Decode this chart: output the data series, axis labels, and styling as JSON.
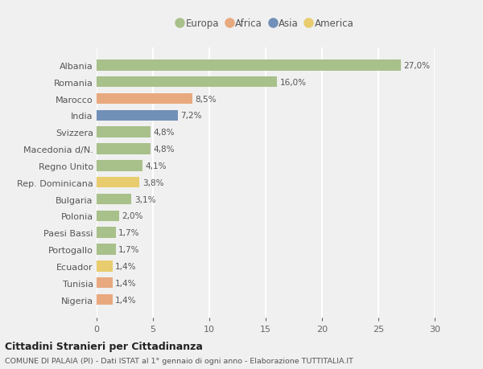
{
  "categories": [
    "Albania",
    "Romania",
    "Marocco",
    "India",
    "Svizzera",
    "Macedonia d/N.",
    "Regno Unito",
    "Rep. Dominicana",
    "Bulgaria",
    "Polonia",
    "Paesi Bassi",
    "Portogallo",
    "Ecuador",
    "Tunisia",
    "Nigeria"
  ],
  "values": [
    27.0,
    16.0,
    8.5,
    7.2,
    4.8,
    4.8,
    4.1,
    3.8,
    3.1,
    2.0,
    1.7,
    1.7,
    1.4,
    1.4,
    1.4
  ],
  "labels": [
    "27,0%",
    "16,0%",
    "8,5%",
    "7,2%",
    "4,8%",
    "4,8%",
    "4,1%",
    "3,8%",
    "3,1%",
    "2,0%",
    "1,7%",
    "1,7%",
    "1,4%",
    "1,4%",
    "1,4%"
  ],
  "colors": [
    "#a8c08a",
    "#a8c08a",
    "#e8a97e",
    "#7190b8",
    "#a8c08a",
    "#a8c08a",
    "#a8c08a",
    "#e8cc6e",
    "#a8c08a",
    "#a8c08a",
    "#a8c08a",
    "#a8c08a",
    "#e8cc6e",
    "#e8a97e",
    "#e8a97e"
  ],
  "continents": [
    "Europa",
    "Africa",
    "Asia",
    "America"
  ],
  "legend_colors": [
    "#a8c08a",
    "#e8a97e",
    "#7190b8",
    "#e8cc6e"
  ],
  "xlim": [
    0,
    30
  ],
  "xticks": [
    0,
    5,
    10,
    15,
    20,
    25,
    30
  ],
  "title": "Cittadini Stranieri per Cittadinanza",
  "subtitle": "COMUNE DI PALAIA (PI) - Dati ISTAT al 1° gennaio di ogni anno - Elaborazione TUTTITALIA.IT",
  "bg_color": "#f0f0f0",
  "grid_color": "#ffffff",
  "bar_height": 0.65
}
